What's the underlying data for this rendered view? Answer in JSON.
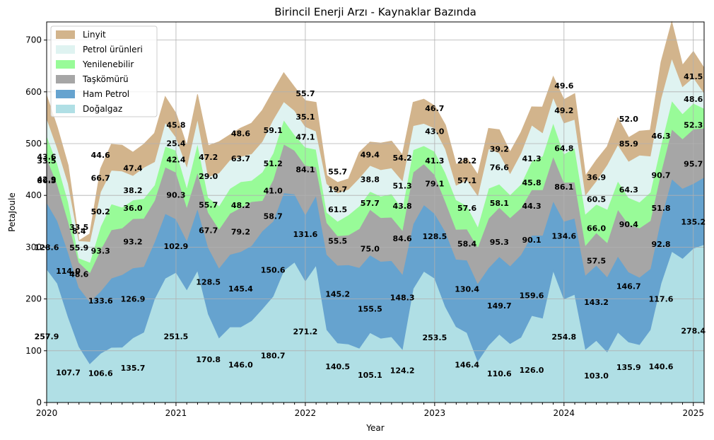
{
  "chart_data": {
    "type": "area",
    "stacked": true,
    "title": "Birincil Enerji Arzı - Kaynaklar Bazında",
    "xlabel": "Year",
    "ylabel": "PetaJoule",
    "ylim": [
      0,
      735
    ],
    "yticks": [
      0,
      100,
      200,
      300,
      400,
      500,
      600,
      700
    ],
    "xlim": [
      "2020-01",
      "2025-02"
    ],
    "xticks": [
      "2020",
      "2021",
      "2022",
      "2023",
      "2024",
      "2025"
    ],
    "grid": true,
    "legend_position": "top-left",
    "x": [
      "2020-01",
      "2020-02",
      "2020-03",
      "2020-04",
      "2020-05",
      "2020-06",
      "2020-07",
      "2020-08",
      "2020-09",
      "2020-10",
      "2020-11",
      "2020-12",
      "2021-01",
      "2021-02",
      "2021-03",
      "2021-04",
      "2021-05",
      "2021-06",
      "2021-07",
      "2021-08",
      "2021-09",
      "2021-10",
      "2021-11",
      "2021-12",
      "2022-01",
      "2022-02",
      "2022-03",
      "2022-04",
      "2022-05",
      "2022-06",
      "2022-07",
      "2022-08",
      "2022-09",
      "2022-10",
      "2022-11",
      "2022-12",
      "2023-01",
      "2023-02",
      "2023-03",
      "2023-04",
      "2023-05",
      "2023-06",
      "2023-07",
      "2023-08",
      "2023-09",
      "2023-10",
      "2023-11",
      "2023-12",
      "2024-01",
      "2024-02",
      "2024-03",
      "2024-04",
      "2024-05",
      "2024-06",
      "2024-07",
      "2024-08",
      "2024-09",
      "2024-10",
      "2024-11",
      "2024-12",
      "2025-01",
      "2025-02"
    ],
    "series": [
      {
        "name": "Doğalgaz",
        "color": "#b0dfe5",
        "values": [
          257.9,
          230,
          165,
          108,
          75,
          95,
          106.6,
          107,
          125,
          135.7,
          200,
          240,
          251.5,
          218,
          255,
          170.8,
          125,
          146,
          146,
          158,
          180.7,
          205,
          255,
          271.2,
          235,
          265,
          140.5,
          115,
          113,
          105.1,
          135,
          124.2,
          127,
          103,
          220,
          253.5,
          240,
          185,
          146.4,
          135,
          80,
          110.6,
          132,
          114,
          126.0,
          168,
          163,
          254.8,
          200,
          209,
          103.0,
          120,
          98,
          135.9,
          117,
          112,
          140.6,
          230,
          292,
          278.4,
          298,
          305
        ]
      },
      {
        "name": "Ham Petrol",
        "color": "#66a3cf",
        "values": [
          128.6,
          121,
          125,
          114.0,
          120,
          120,
          133.6,
          140,
          135,
          126.9,
          110,
          125,
          102.9,
          95,
          120,
          128.5,
          135,
          140,
          145.4,
          145,
          150.6,
          145,
          150,
          131.6,
          128,
          135,
          145.2,
          150,
          153,
          155.5,
          150,
          148.3,
          147,
          145,
          125,
          128.5,
          125,
          145,
          130.4,
          140,
          150,
          149.7,
          150,
          150,
          159.6,
          155,
          160,
          134.6,
          150,
          147,
          143.2,
          145,
          145,
          146.7,
          135,
          130,
          117.6,
          125,
          140,
          135.2,
          125,
          130
        ]
      },
      {
        "name": "Taşkömürü",
        "color": "#a6a6a6",
        "values": [
          86.5,
          70,
          60,
          48.6,
          55.9,
          80,
          93.3,
          90,
          95,
          93.2,
          80,
          90,
          90.3,
          65,
          70,
          67.7,
          75,
          79.2,
          85,
          85,
          58.7,
          80,
          94,
          84.1,
          95,
          55,
          61.5,
          57,
          57.7,
          75.0,
          88,
          84.6,
          84,
          85,
          100,
          79.1,
          75,
          58,
          57.6,
          60,
          70,
          95.3,
          95,
          93,
          90.1,
          88,
          88,
          86.1,
          75,
          70,
          57.5,
          63,
          66.0,
          90.4,
          92,
          95,
          92.8,
          90,
          96,
          95.7,
          105,
          95
        ]
      },
      {
        "name": "Yenilenebilir",
        "color": "#98fb98",
        "values": [
          42.9,
          40,
          38,
          8.4,
          20,
          45,
          50.2,
          40,
          36.0,
          38.2,
          30,
          40,
          42.4,
          38,
          55.7,
          29.0,
          45,
          48.2,
          50,
          41.0,
          55,
          51.2,
          47.1,
          30,
          35,
          34,
          19.7,
          28,
          38.8,
          43.8,
          35,
          41.3,
          45,
          41.3,
          43,
          35,
          45,
          55.7,
          57.1,
          45,
          40,
          58.1,
          45,
          44.3,
          45.8,
          55,
          65,
          64.8,
          55,
          66.0,
          60.5,
          55,
          64.3,
          55,
          51.8,
          50,
          55,
          52.3,
          55,
          48.6,
          50,
          38
        ]
      },
      {
        "name": "Petrol ürünleri",
        "color": "#dff3f1",
        "values": [
          33.5,
          30,
          35,
          33.5,
          40,
          66.7,
          65,
          70,
          47.4,
          60,
          45,
          45.8,
          25.4,
          40,
          47.2,
          40,
          63.7,
          55,
          48.6,
          51.3,
          59.1,
          65,
          35.1,
          47.1,
          40,
          35,
          55.7,
          55,
          49.4,
          54.2,
          50,
          51.3,
          50,
          54.2,
          46.7,
          43.0,
          45,
          46,
          28.2,
          50,
          60,
          76.6,
          60,
          41.3,
          60,
          70,
          45,
          49.2,
          60,
          55,
          36.9,
          45,
          85.9,
          70,
          70,
          90.7,
          70,
          90,
          82,
          52.3,
          50,
          30
        ]
      },
      {
        "name": "Linyit",
        "color": "#d2b48c",
        "values": [
          43.6,
          40,
          35,
          0,
          15,
          44.6,
          50,
          50,
          45,
          44.6,
          55,
          50,
          45.8,
          40,
          47.2,
          60,
          60,
          48.6,
          55,
          59.1,
          60,
          55,
          55.7,
          45.0,
          50,
          55.7,
          16,
          20,
          20,
          49.4,
          45,
          51.3,
          52,
          50,
          45,
          46.7,
          43,
          46.3,
          40,
          42,
          40,
          39.2,
          45,
          41.3,
          40,
          35,
          49.6,
          40,
          45,
          49.6,
          36.9,
          40,
          35,
          52.0,
          46,
          46.3,
          50,
          70,
          70,
          41.5,
          50,
          48
        ]
      }
    ],
    "data_labels": [
      {
        "x": "2020-01",
        "y": 475,
        "text": "43.6"
      },
      {
        "x": "2020-01",
        "y": 467,
        "text": "33.5"
      },
      {
        "x": "2020-01",
        "y": 431,
        "text": "42.9"
      },
      {
        "x": "2020-01",
        "y": 429,
        "text": "86.5"
      },
      {
        "x": "2020-01",
        "y": 300,
        "text": "128.6"
      },
      {
        "x": "2020-01",
        "y": 128,
        "text": "257.9"
      },
      {
        "x": "2020-03",
        "y": 254,
        "text": "114.0"
      },
      {
        "x": "2020-03",
        "y": 58,
        "text": "107.7"
      },
      {
        "x": "2020-04",
        "y": 248,
        "text": "48.6"
      },
      {
        "x": "2020-04",
        "y": 299,
        "text": "55.9"
      },
      {
        "x": "2020-04",
        "y": 331,
        "text": "8.4"
      },
      {
        "x": "2020-04",
        "y": 339,
        "text": "33.5"
      },
      {
        "x": "2020-06",
        "y": 478,
        "text": "44.6"
      },
      {
        "x": "2020-06",
        "y": 434,
        "text": "66.7"
      },
      {
        "x": "2020-06",
        "y": 369,
        "text": "50.2"
      },
      {
        "x": "2020-06",
        "y": 293,
        "text": "93.3"
      },
      {
        "x": "2020-06",
        "y": 197,
        "text": "133.6"
      },
      {
        "x": "2020-06",
        "y": 57,
        "text": "106.6"
      },
      {
        "x": "2020-09",
        "y": 453,
        "text": "47.4"
      },
      {
        "x": "2020-09",
        "y": 410,
        "text": "38.2"
      },
      {
        "x": "2020-09",
        "y": 376,
        "text": "36.0"
      },
      {
        "x": "2020-09",
        "y": 311,
        "text": "93.2"
      },
      {
        "x": "2020-09",
        "y": 200,
        "text": "126.9"
      },
      {
        "x": "2020-09",
        "y": 67,
        "text": "135.7"
      },
      {
        "x": "2021-01",
        "y": 536,
        "text": "45.8"
      },
      {
        "x": "2021-01",
        "y": 501,
        "text": "25.4"
      },
      {
        "x": "2021-01",
        "y": 469,
        "text": "42.4"
      },
      {
        "x": "2021-01",
        "y": 401,
        "text": "90.3"
      },
      {
        "x": "2021-01",
        "y": 302,
        "text": "102.9"
      },
      {
        "x": "2021-01",
        "y": 128,
        "text": "251.5"
      },
      {
        "x": "2021-04",
        "y": 474,
        "text": "47.2"
      },
      {
        "x": "2021-04",
        "y": 437,
        "text": "29.0"
      },
      {
        "x": "2021-04",
        "y": 382,
        "text": "55.7"
      },
      {
        "x": "2021-04",
        "y": 333,
        "text": "67.7"
      },
      {
        "x": "2021-04",
        "y": 233,
        "text": "128.5"
      },
      {
        "x": "2021-04",
        "y": 83,
        "text": "170.8"
      },
      {
        "x": "2021-07",
        "y": 520,
        "text": "48.6"
      },
      {
        "x": "2021-07",
        "y": 471,
        "text": "63.7"
      },
      {
        "x": "2021-07",
        "y": 381,
        "text": "48.2"
      },
      {
        "x": "2021-07",
        "y": 330,
        "text": "79.2"
      },
      {
        "x": "2021-07",
        "y": 220,
        "text": "145.4"
      },
      {
        "x": "2021-07",
        "y": 73,
        "text": "146.0"
      },
      {
        "x": "2021-10",
        "y": 526,
        "text": "59.1"
      },
      {
        "x": "2021-10",
        "y": 462,
        "text": "51.2"
      },
      {
        "x": "2021-10",
        "y": 409,
        "text": "41.0"
      },
      {
        "x": "2021-10",
        "y": 360,
        "text": "58.7"
      },
      {
        "x": "2021-10",
        "y": 256,
        "text": "150.6"
      },
      {
        "x": "2021-10",
        "y": 91,
        "text": "180.7"
      },
      {
        "x": "2022-01",
        "y": 597,
        "text": "55.7"
      },
      {
        "x": "2022-01",
        "y": 552,
        "text": "35.1"
      },
      {
        "x": "2022-01",
        "y": 513,
        "text": "47.1"
      },
      {
        "x": "2022-01",
        "y": 450,
        "text": "84.1"
      },
      {
        "x": "2022-01",
        "y": 325,
        "text": "131.6"
      },
      {
        "x": "2022-01",
        "y": 137,
        "text": "271.2"
      },
      {
        "x": "2022-04",
        "y": 446,
        "text": "55.7"
      },
      {
        "x": "2022-04",
        "y": 412,
        "text": "19.7"
      },
      {
        "x": "2022-04",
        "y": 373,
        "text": "61.5"
      },
      {
        "x": "2022-04",
        "y": 312,
        "text": "55.5"
      },
      {
        "x": "2022-04",
        "y": 210,
        "text": "145.2"
      },
      {
        "x": "2022-04",
        "y": 70,
        "text": "140.5"
      },
      {
        "x": "2022-07",
        "y": 479,
        "text": "49.4"
      },
      {
        "x": "2022-07",
        "y": 431,
        "text": "38.8"
      },
      {
        "x": "2022-07",
        "y": 385,
        "text": "57.7"
      },
      {
        "x": "2022-07",
        "y": 297,
        "text": "75.0"
      },
      {
        "x": "2022-07",
        "y": 181,
        "text": "155.5"
      },
      {
        "x": "2022-07",
        "y": 53,
        "text": "105.1"
      },
      {
        "x": "2022-10",
        "y": 473,
        "text": "54.2"
      },
      {
        "x": "2022-10",
        "y": 419,
        "text": "51.3"
      },
      {
        "x": "2022-10",
        "y": 380,
        "text": "43.8"
      },
      {
        "x": "2022-10",
        "y": 317,
        "text": "84.6"
      },
      {
        "x": "2022-10",
        "y": 203,
        "text": "148.3"
      },
      {
        "x": "2022-10",
        "y": 62,
        "text": "124.2"
      },
      {
        "x": "2023-01",
        "y": 568,
        "text": "46.7"
      },
      {
        "x": "2023-01",
        "y": 524,
        "text": "43.0"
      },
      {
        "x": "2023-01",
        "y": 467,
        "text": "41.3"
      },
      {
        "x": "2023-01",
        "y": 423,
        "text": "79.1"
      },
      {
        "x": "2023-01",
        "y": 321,
        "text": "128.5"
      },
      {
        "x": "2023-01",
        "y": 126,
        "text": "253.5"
      },
      {
        "x": "2023-04",
        "y": 467,
        "text": "28.2"
      },
      {
        "x": "2023-04",
        "y": 429,
        "text": "57.1"
      },
      {
        "x": "2023-04",
        "y": 376,
        "text": "57.6"
      },
      {
        "x": "2023-04",
        "y": 307,
        "text": "58.4"
      },
      {
        "x": "2023-04",
        "y": 219,
        "text": "130.4"
      },
      {
        "x": "2023-04",
        "y": 73,
        "text": "146.4"
      },
      {
        "x": "2023-07",
        "y": 490,
        "text": "39.2"
      },
      {
        "x": "2023-07",
        "y": 454,
        "text": "76.6"
      },
      {
        "x": "2023-07",
        "y": 385,
        "text": "58.1"
      },
      {
        "x": "2023-07",
        "y": 310,
        "text": "95.3"
      },
      {
        "x": "2023-07",
        "y": 187,
        "text": "149.7"
      },
      {
        "x": "2023-07",
        "y": 56,
        "text": "110.6"
      },
      {
        "x": "2023-10",
        "y": 471,
        "text": "41.3"
      },
      {
        "x": "2023-10",
        "y": 425,
        "text": "45.8"
      },
      {
        "x": "2023-10",
        "y": 380,
        "text": "44.3"
      },
      {
        "x": "2023-10",
        "y": 314,
        "text": "90.1"
      },
      {
        "x": "2023-10",
        "y": 207,
        "text": "159.6"
      },
      {
        "x": "2023-10",
        "y": 63,
        "text": "126.0"
      },
      {
        "x": "2024-01",
        "y": 612,
        "text": "49.6"
      },
      {
        "x": "2024-01",
        "y": 564,
        "text": "49.2"
      },
      {
        "x": "2024-01",
        "y": 491,
        "text": "64.8"
      },
      {
        "x": "2024-01",
        "y": 417,
        "text": "86.1"
      },
      {
        "x": "2024-01",
        "y": 322,
        "text": "134.6"
      },
      {
        "x": "2024-01",
        "y": 127,
        "text": "254.8"
      },
      {
        "x": "2024-04",
        "y": 435,
        "text": "36.9"
      },
      {
        "x": "2024-04",
        "y": 393,
        "text": "60.5"
      },
      {
        "x": "2024-04",
        "y": 337,
        "text": "66.0"
      },
      {
        "x": "2024-04",
        "y": 274,
        "text": "57.5"
      },
      {
        "x": "2024-04",
        "y": 194,
        "text": "143.2"
      },
      {
        "x": "2024-04",
        "y": 52,
        "text": "103.0"
      },
      {
        "x": "2024-07",
        "y": 548,
        "text": "52.0"
      },
      {
        "x": "2024-07",
        "y": 500,
        "text": "85.9"
      },
      {
        "x": "2024-07",
        "y": 411,
        "text": "64.3"
      },
      {
        "x": "2024-07",
        "y": 344,
        "text": "90.4"
      },
      {
        "x": "2024-07",
        "y": 225,
        "text": "146.7"
      },
      {
        "x": "2024-07",
        "y": 68,
        "text": "135.9"
      },
      {
        "x": "2024-10",
        "y": 515,
        "text": "46.3"
      },
      {
        "x": "2024-10",
        "y": 439,
        "text": "90.7"
      },
      {
        "x": "2024-10",
        "y": 376,
        "text": "51.8"
      },
      {
        "x": "2024-10",
        "y": 306,
        "text": "92.8"
      },
      {
        "x": "2024-10",
        "y": 200,
        "text": "117.6"
      },
      {
        "x": "2024-10",
        "y": 70,
        "text": "140.6"
      },
      {
        "x": "2025-01",
        "y": 630,
        "text": "41.5"
      },
      {
        "x": "2025-01",
        "y": 586,
        "text": "48.6"
      },
      {
        "x": "2025-01",
        "y": 536,
        "text": "52.3"
      },
      {
        "x": "2025-01",
        "y": 461,
        "text": "95.7"
      },
      {
        "x": "2025-01",
        "y": 349,
        "text": "135.2"
      },
      {
        "x": "2025-01",
        "y": 139,
        "text": "278.4"
      }
    ]
  }
}
